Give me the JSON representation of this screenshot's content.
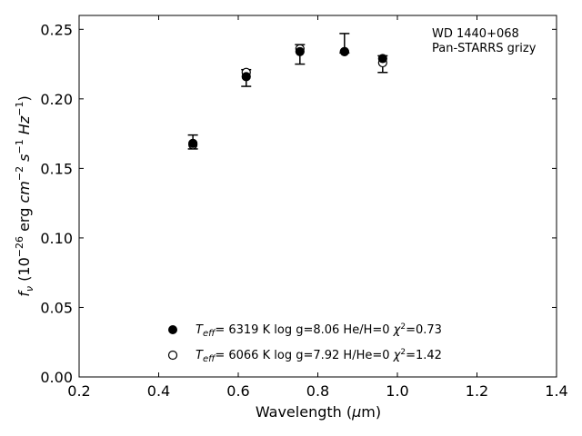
{
  "chart_data": {
    "type": "scatter",
    "xlabel": "Wavelength (μm)",
    "ylabel": "f_ν (10^-26 erg cm^-2 s^-1 Hz^-1)",
    "xlim": [
      0.2,
      1.4
    ],
    "ylim": [
      0.0,
      0.26
    ],
    "xticks": [
      "0.2",
      "0.4",
      "0.6",
      "0.8",
      "1.0",
      "1.2",
      "1.4"
    ],
    "yticks": [
      "0.00",
      "0.05",
      "0.10",
      "0.15",
      "0.20",
      "0.25"
    ],
    "annotation": [
      "WD 1440+068",
      "Pan-STARRS grizy"
    ],
    "observed": {
      "x": [
        0.486,
        0.62,
        0.755,
        0.867,
        0.963
      ],
      "y": [
        0.169,
        0.215,
        0.232,
        0.24,
        0.225
      ],
      "err": [
        0.005,
        0.006,
        0.007,
        0.007,
        0.006
      ]
    },
    "series": [
      {
        "name": "T_eff= 6319 K  log g=8.06  He/H=0  χ²=0.73",
        "marker": "filled",
        "x": [
          0.486,
          0.62,
          0.755,
          0.867,
          0.963
        ],
        "y": [
          0.168,
          0.216,
          0.234,
          0.234,
          0.229
        ]
      },
      {
        "name": "T_eff= 6066 K  log g=7.92  H/He=0  χ²=1.42",
        "marker": "open",
        "x": [
          0.486,
          0.62,
          0.755,
          0.867,
          0.963
        ],
        "y": [
          0.167,
          0.219,
          0.236,
          0.234,
          0.226
        ]
      }
    ],
    "legend": {
      "position": "lower-center",
      "entries": [
        {
          "teff": "6319 K",
          "rest": "log g=8.06  He/H=0",
          "chi_val": "=0.73"
        },
        {
          "teff": "6066 K",
          "rest": "log g=7.92  H/He=0",
          "chi_val": "=1.42"
        }
      ]
    },
    "grid": false,
    "colors": {
      "marker": "#000000",
      "background": "#ffffff"
    }
  }
}
